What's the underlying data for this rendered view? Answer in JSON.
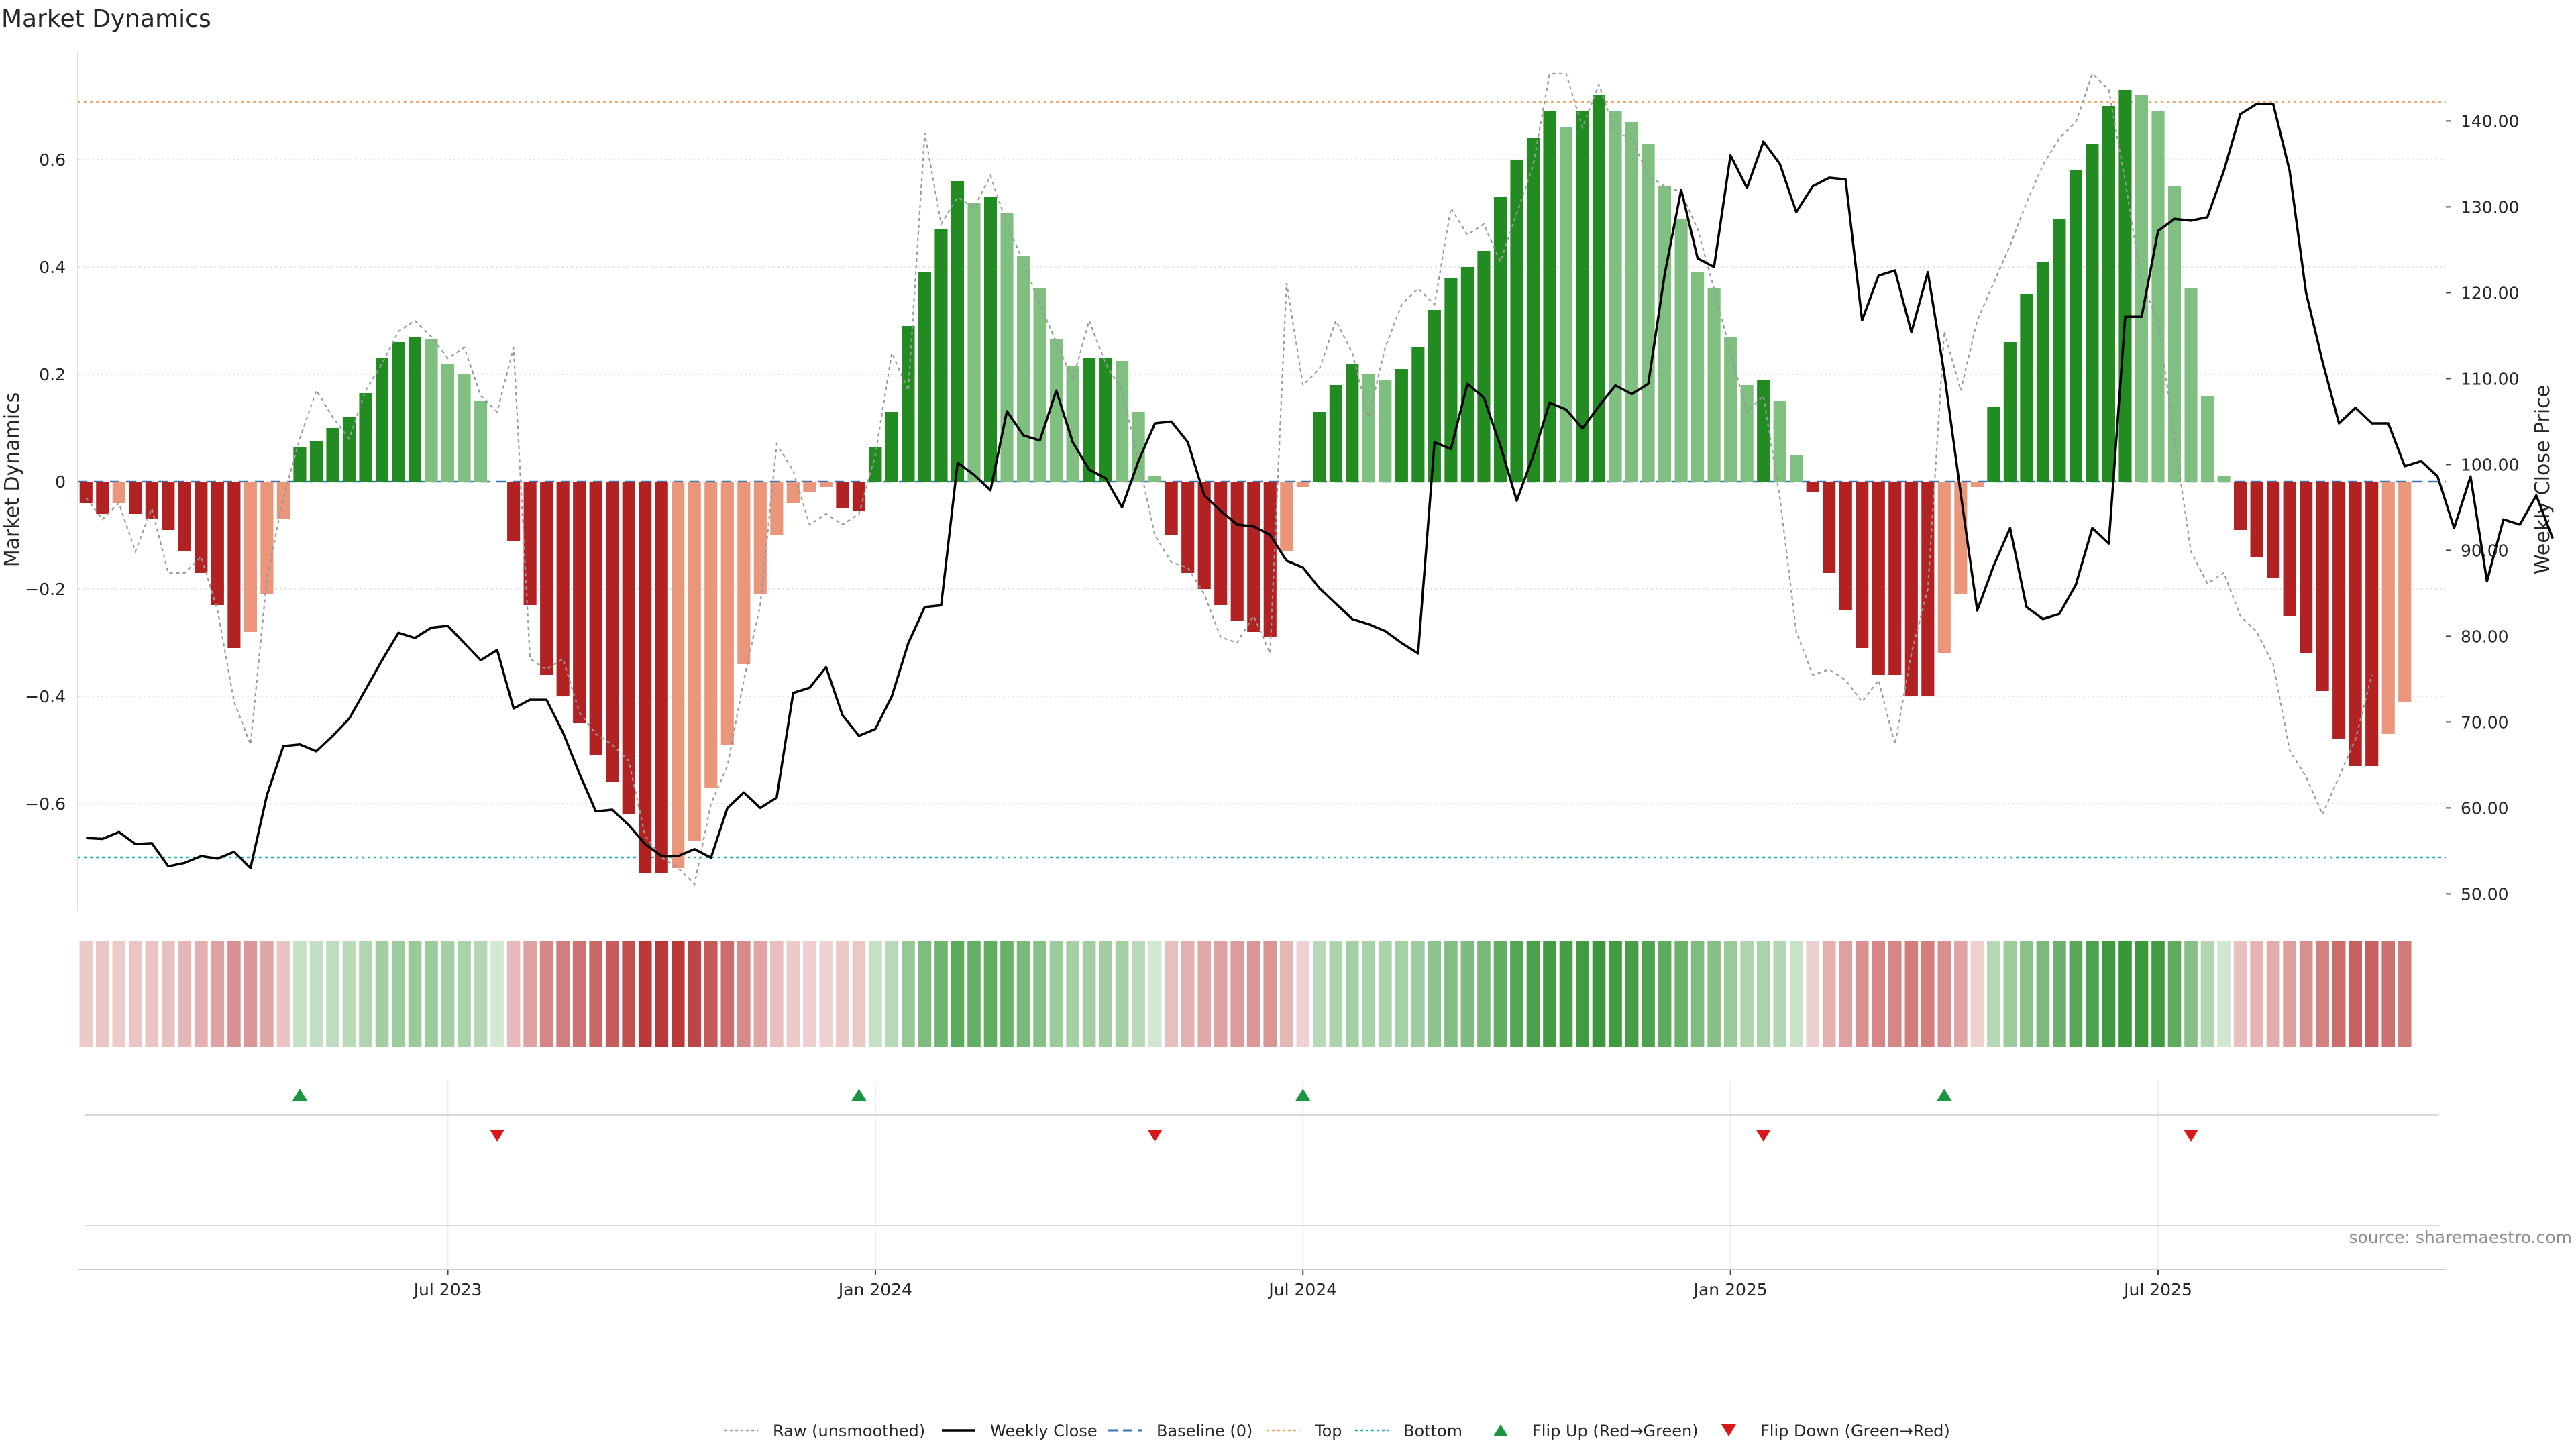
{
  "chart_data": {
    "type": "bar",
    "title": "Market Dynamics",
    "ylabel_left": "Market Dynamics",
    "ylabel_right": "Weekly Close Price",
    "source": "source: sharemaestro.com",
    "ylim_left": [
      -0.8,
      0.8
    ],
    "ylim_right": [
      48.0,
      148.0
    ],
    "left_ticks": [
      0.6,
      0.4,
      0.2,
      0,
      -0.2,
      -0.4,
      -0.6
    ],
    "left_tick_labels": [
      "0.6",
      "0.4",
      "0.2",
      "0",
      "−0.2",
      "−0.4",
      "−0.6"
    ],
    "right_ticks": [
      140,
      130,
      120,
      110,
      100,
      90,
      80,
      70,
      60,
      50
    ],
    "right_tick_labels": [
      "140.00",
      "130.00",
      "120.00",
      "110.00",
      "100.00",
      "90.00",
      "80.00",
      "70.00",
      "60.00",
      "50.00"
    ],
    "x_ticks": [
      {
        "week": 22,
        "label": "Jul 2023"
      },
      {
        "week": 48,
        "label": "Jan 2024"
      },
      {
        "week": 74,
        "label": "Jul 2024"
      },
      {
        "week": 100,
        "label": "Jan 2025"
      },
      {
        "week": 126,
        "label": "Jul 2025"
      }
    ],
    "n_weeks": 144,
    "top_level": 0.708,
    "bottom_level": -0.7,
    "baseline": 0,
    "values": [
      -0.04,
      -0.06,
      -0.04,
      -0.06,
      -0.07,
      -0.09,
      -0.13,
      -0.17,
      -0.23,
      -0.31,
      -0.28,
      -0.21,
      -0.07,
      0.065,
      0.075,
      0.1,
      0.12,
      0.165,
      0.23,
      0.26,
      0.27,
      0.265,
      0.22,
      0.2,
      0.15,
      0.0,
      -0.11,
      -0.23,
      -0.36,
      -0.4,
      -0.45,
      -0.51,
      -0.56,
      -0.62,
      -0.73,
      -0.73,
      -0.72,
      -0.67,
      -0.57,
      -0.49,
      -0.34,
      -0.21,
      -0.1,
      -0.04,
      -0.02,
      -0.01,
      -0.05,
      -0.055,
      0.065,
      0.13,
      0.29,
      0.39,
      0.47,
      0.56,
      0.52,
      0.53,
      0.5,
      0.42,
      0.36,
      0.265,
      0.215,
      0.23,
      0.23,
      0.225,
      0.13,
      0.01,
      -0.1,
      -0.17,
      -0.2,
      -0.23,
      -0.26,
      -0.28,
      -0.29,
      -0.13,
      -0.01,
      0.13,
      0.18,
      0.22,
      0.2,
      0.19,
      0.21,
      0.25,
      0.32,
      0.38,
      0.4,
      0.43,
      0.53,
      0.6,
      0.64,
      0.69,
      0.66,
      0.69,
      0.72,
      0.69,
      0.67,
      0.63,
      0.55,
      0.49,
      0.39,
      0.36,
      0.27,
      0.18,
      0.19,
      0.15,
      0.05,
      -0.02,
      -0.17,
      -0.24,
      -0.31,
      -0.36,
      -0.36,
      -0.4,
      -0.4,
      -0.32,
      -0.21,
      -0.01,
      0.14,
      0.26,
      0.35,
      0.41,
      0.49,
      0.58,
      0.63,
      0.7,
      0.73,
      0.72,
      0.69,
      0.55,
      0.36,
      0.16,
      0.01,
      -0.09,
      -0.14,
      -0.18,
      -0.25,
      -0.32,
      -0.39,
      -0.48,
      -0.53,
      -0.53,
      -0.47,
      -0.41
    ],
    "price": [
      56.5,
      56.4,
      57.2,
      55.8,
      55.9,
      53.2,
      53.6,
      54.4,
      54.1,
      54.9,
      53.0,
      61.5,
      67.2,
      67.4,
      66.6,
      68.4,
      70.4,
      73.8,
      77.2,
      80.4,
      79.8,
      81.0,
      81.2,
      79.2,
      77.2,
      78.4,
      71.6,
      72.6,
      72.6,
      68.8,
      64.0,
      59.6,
      59.8,
      58.0,
      55.8,
      54.4,
      54.4,
      55.2,
      54.2,
      60.0,
      61.8,
      60.0,
      61.2,
      73.4,
      74.0,
      76.4,
      70.8,
      68.4,
      69.2,
      73.0,
      79.2,
      83.4,
      83.6,
      100.2,
      98.8,
      97.0,
      106.2,
      103.4,
      102.8,
      108.6,
      102.6,
      99.4,
      98.4,
      95.0,
      100.4,
      104.8,
      105.0,
      102.6,
      96.4,
      94.6,
      93.0,
      92.8,
      91.8,
      88.8,
      88.0,
      85.6,
      83.8,
      82.0,
      81.4,
      80.6,
      79.2,
      78.0,
      102.6,
      101.8,
      109.4,
      107.8,
      102.2,
      95.8,
      101.0,
      107.2,
      106.4,
      104.2,
      106.8,
      109.2,
      108.2,
      109.4,
      122.2,
      132.0,
      124.0,
      123.0,
      136.0,
      132.2,
      137.6,
      135.0,
      129.4,
      132.4,
      133.4,
      133.2,
      116.8,
      122.0,
      122.6,
      115.4,
      122.4,
      110.6,
      96.6,
      83.0,
      88.2,
      92.6,
      83.4,
      82.0,
      82.6,
      86.0,
      92.6,
      90.8,
      117.2,
      117.2,
      127.2,
      128.6,
      128.4,
      128.8,
      134.2,
      140.8,
      142.0,
      142.0,
      134.2,
      120.0,
      112.0,
      104.8,
      106.6,
      104.8,
      104.8,
      99.8,
      100.4,
      98.6,
      92.6,
      98.6,
      86.4,
      93.6,
      93.0,
      96.4,
      91.4
    ],
    "raw": [
      -0.03,
      -0.07,
      -0.04,
      -0.13,
      -0.05,
      -0.17,
      -0.17,
      -0.14,
      -0.24,
      -0.41,
      -0.49,
      -0.18,
      -0.03,
      0.08,
      0.17,
      0.12,
      0.08,
      0.17,
      0.22,
      0.28,
      0.3,
      0.27,
      0.23,
      0.25,
      0.16,
      0.13,
      0.25,
      -0.33,
      -0.35,
      -0.33,
      -0.43,
      -0.47,
      -0.49,
      -0.52,
      -0.66,
      -0.7,
      -0.72,
      -0.75,
      -0.6,
      -0.53,
      -0.37,
      -0.23,
      0.07,
      0.02,
      -0.08,
      -0.06,
      -0.08,
      -0.06,
      0.05,
      0.24,
      0.17,
      0.65,
      0.48,
      0.53,
      0.51,
      0.57,
      0.48,
      0.41,
      0.33,
      0.26,
      0.19,
      0.3,
      0.22,
      0.17,
      0.04,
      -0.1,
      -0.15,
      -0.16,
      -0.21,
      -0.29,
      -0.3,
      -0.25,
      -0.32,
      0.37,
      0.18,
      0.21,
      0.3,
      0.24,
      0.12,
      0.25,
      0.33,
      0.36,
      0.33,
      0.51,
      0.46,
      0.48,
      0.41,
      0.5,
      0.59,
      0.76,
      0.76,
      0.66,
      0.74,
      0.65,
      0.64,
      0.57,
      0.55,
      0.54,
      0.47,
      0.36,
      0.24,
      0.13,
      0.16,
      -0.03,
      -0.28,
      -0.36,
      -0.35,
      -0.37,
      -0.41,
      -0.37,
      -0.49,
      -0.32,
      -0.2,
      0.28,
      0.17,
      0.3,
      0.37,
      0.44,
      0.52,
      0.59,
      0.64,
      0.67,
      0.76,
      0.73,
      0.56,
      0.37,
      0.3,
      0.08,
      -0.13,
      -0.19,
      -0.17,
      -0.25,
      -0.28,
      -0.34,
      -0.5,
      -0.55,
      -0.62,
      -0.55,
      -0.48,
      -0.36
    ],
    "flips": [
      {
        "type": "up",
        "week": 13
      },
      {
        "type": "down",
        "week": 25
      },
      {
        "type": "up",
        "week": 47
      },
      {
        "type": "down",
        "week": 65
      },
      {
        "type": "up",
        "week": 74
      },
      {
        "type": "down",
        "week": 102
      },
      {
        "type": "up",
        "week": 113
      },
      {
        "type": "down",
        "week": 128
      }
    ],
    "colors": {
      "bull_strong": "#228b22",
      "bull_fading": "#7fbf7f",
      "bear_strong": "#b22222",
      "bear_fading": "#e9967a",
      "raw_line": "#9a9a9a",
      "price_line": "#000000",
      "baseline": "#3a72b0",
      "top": "#f4a460",
      "bottom": "#20b2aa",
      "flip_up": "#1a9641",
      "flip_down": "#d7191c"
    },
    "legend": [
      {
        "key": "raw",
        "label": "Raw (unsmoothed)"
      },
      {
        "key": "close",
        "label": "Weekly Close"
      },
      {
        "key": "baseline",
        "label": "Baseline (0)"
      },
      {
        "key": "top",
        "label": "Top"
      },
      {
        "key": "bottom",
        "label": "Bottom"
      },
      {
        "key": "flip_up",
        "label": "Flip Up (Red→Green)"
      },
      {
        "key": "flip_down",
        "label": "Flip Down (Green→Red)"
      }
    ]
  }
}
